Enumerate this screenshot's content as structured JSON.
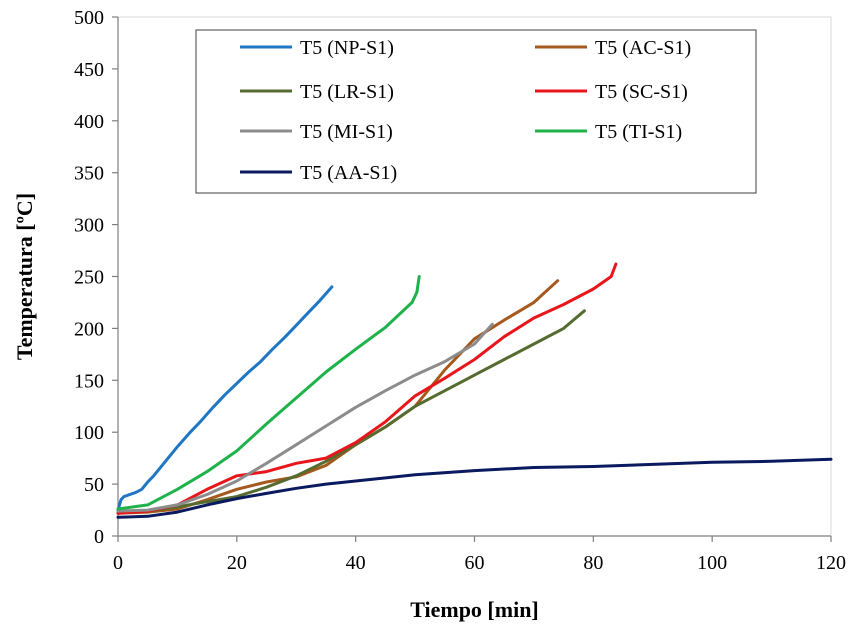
{
  "chart_data": {
    "type": "line",
    "title": "",
    "xlabel": "Tiempo [min]",
    "ylabel": "Temperatura [ºC]",
    "xlim": [
      0,
      120
    ],
    "ylim": [
      0,
      500
    ],
    "xticks": [
      0,
      20,
      40,
      60,
      80,
      100,
      120
    ],
    "yticks": [
      0,
      50,
      100,
      150,
      200,
      250,
      300,
      350,
      400,
      450,
      500
    ],
    "grid": false,
    "legend_position": "top",
    "series": [
      {
        "name": "T5 (NP-S1)",
        "color": "#1f77c4",
        "x": [
          0,
          0.5,
          1,
          2,
          3,
          4,
          5,
          6,
          8,
          10,
          12,
          14,
          16,
          18,
          20,
          22,
          24,
          26,
          28,
          30,
          32,
          34,
          36
        ],
        "y": [
          25,
          35,
          38,
          40,
          42,
          45,
          52,
          58,
          72,
          86,
          99,
          111,
          124,
          136,
          147,
          158,
          168,
          180,
          191,
          203,
          215,
          227,
          240
        ]
      },
      {
        "name": "T5 (AC-S1)",
        "color": "#a5591c",
        "x": [
          0,
          5,
          10,
          15,
          20,
          25,
          30,
          35,
          40,
          45,
          50,
          55,
          60,
          65,
          70,
          74
        ],
        "y": [
          22,
          23,
          26,
          35,
          45,
          52,
          57,
          68,
          88,
          105,
          125,
          160,
          190,
          208,
          225,
          246
        ]
      },
      {
        "name": "T5 (LR-S1)",
        "color": "#556b2f",
        "x": [
          0,
          5,
          10,
          15,
          20,
          25,
          30,
          35,
          40,
          45,
          50,
          55,
          60,
          65,
          70,
          75,
          78.5
        ],
        "y": [
          22,
          24,
          28,
          33,
          38,
          47,
          58,
          72,
          88,
          105,
          125,
          140,
          155,
          170,
          185,
          200,
          217
        ]
      },
      {
        "name": "T5 (SC-S1)",
        "color": "#e8151b",
        "x": [
          0,
          5,
          10,
          15,
          20,
          25,
          30,
          35,
          40,
          45,
          50,
          55,
          60,
          65,
          70,
          75,
          80,
          83,
          83.8
        ],
        "y": [
          22,
          24,
          30,
          45,
          58,
          62,
          70,
          75,
          90,
          110,
          135,
          152,
          170,
          192,
          210,
          223,
          238,
          250,
          262
        ]
      },
      {
        "name": "T5 (MI-S1)",
        "color": "#8c8c8c",
        "x": [
          0,
          5,
          10,
          15,
          20,
          25,
          30,
          35,
          40,
          45,
          50,
          55,
          60,
          63
        ],
        "y": [
          24,
          25,
          30,
          40,
          53,
          70,
          88,
          106,
          124,
          140,
          155,
          168,
          185,
          204
        ]
      },
      {
        "name": "T5 (TI-S1)",
        "color": "#1fb24a",
        "x": [
          0,
          5,
          10,
          15,
          20,
          25,
          30,
          35,
          40,
          45,
          49.5,
          50.3,
          50.7
        ],
        "y": [
          26,
          30,
          45,
          62,
          82,
          108,
          133,
          158,
          180,
          201,
          225,
          235,
          250
        ]
      },
      {
        "name": "T5 (AA-S1)",
        "color": "#0a1a5e",
        "x": [
          0,
          5,
          10,
          15,
          20,
          25,
          30,
          35,
          40,
          50,
          60,
          70,
          80,
          90,
          100,
          110,
          120
        ],
        "y": [
          18,
          19,
          23,
          30,
          36,
          41,
          46,
          50,
          53,
          59,
          63,
          66,
          67,
          69,
          71,
          72,
          74
        ]
      }
    ]
  }
}
